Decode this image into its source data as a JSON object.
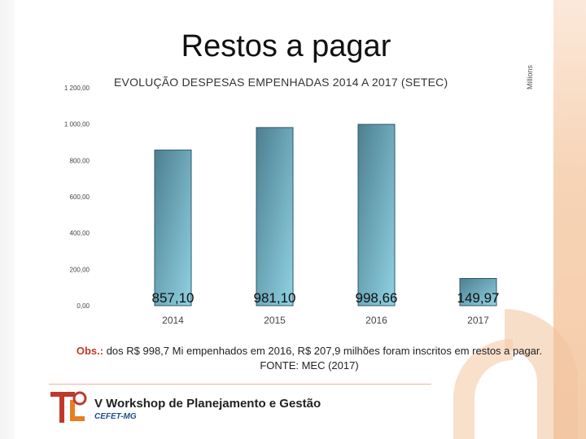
{
  "slide": {
    "title": "Restos a pagar",
    "obs_label": "Obs.:",
    "obs_text": " dos R$ 998,7 Mi empenhados em 2016, R$ 207,9 milhões foram inscritos em restos a pagar. FONTE: MEC (2017)",
    "footer": {
      "workshop": "V Workshop de Planejamento e Gestão",
      "institution": "CEFET-MG"
    }
  },
  "chart_data": {
    "type": "bar",
    "title": "EVOLUÇÃO DESPESAS EMPENHADAS 2014 A 2017 (SETEC)",
    "units_label": "Millions",
    "categories": [
      "2014",
      "2015",
      "2016",
      "2017"
    ],
    "values": [
      857.1,
      981.1,
      998.66,
      149.97
    ],
    "data_labels": [
      "857,10",
      "981,10",
      "998,66",
      "149,97"
    ],
    "y_ticks": [
      "0,00",
      "200,00",
      "400,00",
      "600,00",
      "800,00",
      "1 000,00",
      "1 200,00"
    ],
    "y_tick_values": [
      0,
      200,
      400,
      600,
      800,
      1000,
      1200
    ],
    "ylim": [
      0,
      1200
    ],
    "grid": false,
    "colors": {
      "bar_top": "#4d7f90",
      "bar_bottom": "#8fd2e3",
      "bar_stroke": "#2f5868"
    }
  }
}
